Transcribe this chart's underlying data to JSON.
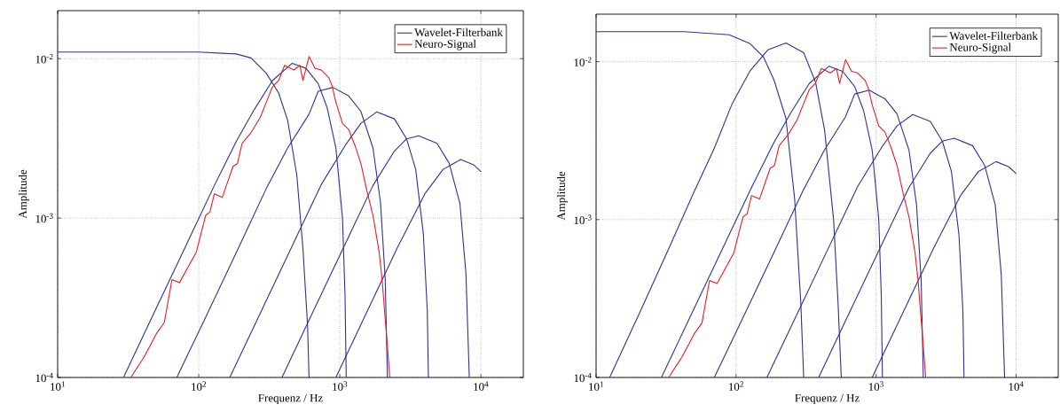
{
  "chart_data": [
    {
      "type": "line",
      "xlabel": "Frequenz / Hz",
      "ylabel": "Amplitude",
      "log": "xy",
      "grid": true,
      "legend": "top right",
      "xlim": [
        10,
        20000
      ],
      "ylim": [
        0.0001,
        0.02
      ],
      "xticks": [
        {
          "value": 10,
          "label": "10$^{1}$"
        },
        {
          "value": 100,
          "label": "10$^{2}$"
        },
        {
          "value": 1000,
          "label": "10$^{3}$"
        },
        {
          "value": 10000,
          "label": "10$^{4}$"
        }
      ],
      "yticks": [
        {
          "value": 0.0001,
          "label": "10$^{-4}$"
        },
        {
          "value": 0.001,
          "label": "10$^{-3}$"
        },
        {
          "value": 0.01,
          "label": "10$^{-2}$"
        }
      ],
      "series": [
        {
          "name": "Wavelet-Filterbank",
          "color": "#2e3192",
          "x": [
            10,
            100,
            184,
            235,
            301,
            368,
            427,
            496,
            548,
            591,
            605
          ],
          "values": [
            0.011,
            0.011,
            0.0107,
            0.0101,
            0.0081,
            0.0061,
            0.0041,
            0.00185,
            0.00064,
            0.00021,
            0.0001
          ]
        },
        {
          "name": "Neuro-Signal",
          "color": "#ed1c24",
          "x": [
            33.0,
            41.3,
            50.4,
            57.0,
            64.6,
            73.1,
            96.1,
            112,
            120,
            129,
            147,
            175,
            188,
            203,
            235,
            273,
            301,
            333,
            368,
            406,
            472,
            521,
            548,
            605,
            668,
            738,
            836,
            879,
            938,
            1045,
            1156,
            1276,
            1409,
            1556,
            1718,
            1900,
            1995,
            2099,
            2203,
            2259
          ],
          "values": [
            0.0001,
            0.000136,
            0.00019,
            0.000221,
            0.000411,
            0.000394,
            0.000612,
            0.00104,
            0.00109,
            0.00142,
            0.00135,
            0.00211,
            0.0022,
            0.00294,
            0.00344,
            0.00428,
            0.00533,
            0.00665,
            0.00728,
            0.00907,
            0.00849,
            0.00907,
            0.00728,
            0.0103,
            0.00869,
            0.00849,
            0.0076,
            0.00681,
            0.00533,
            0.00392,
            0.00359,
            0.00288,
            0.00221,
            0.00148,
            0.00104,
            0.000612,
            0.000411,
            0.000232,
            0.000136,
            0.0001
          ]
        },
        {
          "color": "#2e3192",
          "x": [
            29.3,
            47.9,
            78.7,
            129,
            184,
            247,
            333,
            460,
            576,
            703,
            815,
            938,
            1045,
            1089,
            1110
          ],
          "values": [
            0.0001,
            0.000251,
            0.000634,
            0.0016,
            0.00301,
            0.00478,
            0.00728,
            0.00935,
            0.00869,
            0.00697,
            0.00489,
            0.00275,
            0.001,
            0.00033,
            0.0001
          ]
        },
        {
          "color": "#2e3192",
          "x": [
            69.9,
            112,
            184,
            301,
            427,
            605,
            703,
            892,
            1156,
            1409,
            1718,
            1945,
            2099,
            2174
          ],
          "values": [
            0.0001,
            0.000239,
            0.000604,
            0.00153,
            0.00275,
            0.00448,
            0.00624,
            0.0066,
            0.00583,
            0.00468,
            0.00275,
            0.00124,
            0.000411,
            0.0001
          ]
        },
        {
          "color": "#2e3192",
          "x": [
            166,
            273,
            449,
            738,
            1099,
            1409,
            1824,
            2437,
            2972,
            3451,
            3908,
            4169,
            4246
          ],
          "values": [
            0.0001,
            0.000253,
            0.00064,
            0.00162,
            0.00288,
            0.00392,
            0.00463,
            0.00419,
            0.00314,
            0.00202,
            0.000798,
            0.000264,
            0.0001
          ]
        },
        {
          "color": "#2e3192",
          "x": [
            389,
            636,
            1045,
            1718,
            2437,
            2972,
            3622,
            4886,
            5956,
            7096,
            7834,
            8276
          ],
          "values": [
            0.0001,
            0.000251,
            0.000634,
            0.0016,
            0.00263,
            0.00314,
            0.00328,
            0.00294,
            0.00221,
            0.00124,
            0.00045,
            0.0001
          ]
        },
        {
          "color": "#2e3192",
          "x": [
            938,
            1556,
            2559,
            4009,
            5395,
            7194,
            8872,
            10040
          ],
          "values": [
            0.0001,
            0.000258,
            0.000652,
            0.00142,
            0.00202,
            0.00233,
            0.00216,
            0.00195
          ]
        }
      ]
    },
    {
      "type": "line",
      "xlabel": "Frequenz / Hz",
      "ylabel": "Amplitude",
      "log": "xy",
      "grid": true,
      "legend": "top right",
      "xlim": [
        10,
        20000
      ],
      "ylim": [
        0.0001,
        0.02
      ],
      "xticks": [
        {
          "value": 10,
          "label": "10$^{1}$"
        },
        {
          "value": 100,
          "label": "10$^{2}$"
        },
        {
          "value": 1000,
          "label": "10$^{3}$"
        },
        {
          "value": 10000,
          "label": "10$^{4}$"
        }
      ],
      "yticks": [
        {
          "value": 0.0001,
          "label": "10$^{-4}$"
        },
        {
          "value": 0.001,
          "label": "10$^{-3}$"
        },
        {
          "value": 0.01,
          "label": "10$^{-2}$"
        }
      ],
      "series": [
        {
          "name": "Wavelet-Filterbank",
          "color": "#2e3192",
          "x": [
            10,
            42.8,
            89.3,
            126,
            157,
            186,
            227,
            262,
            290,
            304
          ],
          "values": [
            0.0155,
            0.0155,
            0.0148,
            0.013,
            0.0107,
            0.00771,
            0.00438,
            0.00135,
            0.000294,
            0.0001
          ]
        },
        {
          "name": "Neuro-Signal",
          "color": "#ed1c24",
          "x": [
            33.0,
            41.3,
            50.4,
            57.0,
            64.6,
            73.1,
            96.1,
            112,
            120,
            129,
            147,
            175,
            188,
            203,
            235,
            273,
            301,
            333,
            368,
            406,
            472,
            521,
            548,
            605,
            668,
            738,
            836,
            879,
            938,
            1045,
            1156,
            1276,
            1409,
            1556,
            1718,
            1900,
            1995,
            2099,
            2203,
            2259
          ],
          "values": [
            0.0001,
            0.000136,
            0.00019,
            0.000221,
            0.000411,
            0.000394,
            0.000612,
            0.00104,
            0.00109,
            0.00142,
            0.00135,
            0.00211,
            0.0022,
            0.00294,
            0.00344,
            0.00428,
            0.00533,
            0.00665,
            0.00728,
            0.00907,
            0.00849,
            0.00907,
            0.00728,
            0.0103,
            0.00869,
            0.00849,
            0.0076,
            0.00681,
            0.00533,
            0.00392,
            0.00359,
            0.00288,
            0.00221,
            0.00148,
            0.00104,
            0.000612,
            0.000411,
            0.000232,
            0.000136,
            0.0001
          ]
        },
        {
          "color": "#2e3192",
          "x": [
            12.5,
            20.5,
            33.5,
            49.6,
            69.9,
            93.8,
            126,
            169,
            227,
            304,
            370,
            429,
            497,
            535,
            564
          ],
          "values": [
            0.0001,
            0.000258,
            0.000673,
            0.00147,
            0.00283,
            0.00543,
            0.00877,
            0.0119,
            0.01315,
            0.0114,
            0.00738,
            0.00367,
            0.001,
            0.000294,
            0.0001
          ]
        },
        {
          "color": "#2e3192",
          "x": [
            29.3,
            47.9,
            78.7,
            129,
            184,
            247,
            333,
            460,
            576,
            703,
            815,
            938,
            1045,
            1089,
            1110
          ],
          "values": [
            0.0001,
            0.000251,
            0.000634,
            0.0016,
            0.00301,
            0.00478,
            0.00728,
            0.00935,
            0.00869,
            0.00697,
            0.00489,
            0.00275,
            0.001,
            0.00033,
            0.0001
          ]
        },
        {
          "color": "#2e3192",
          "x": [
            69.9,
            112,
            184,
            301,
            427,
            605,
            703,
            892,
            1156,
            1409,
            1718,
            1945,
            2099,
            2174
          ],
          "values": [
            0.0001,
            0.000239,
            0.000604,
            0.00153,
            0.00275,
            0.00448,
            0.00624,
            0.0066,
            0.00583,
            0.00468,
            0.00275,
            0.00124,
            0.000411,
            0.0001
          ]
        },
        {
          "color": "#2e3192",
          "x": [
            166,
            273,
            449,
            738,
            1099,
            1409,
            1824,
            2437,
            2972,
            3451,
            3908,
            4169,
            4246
          ],
          "values": [
            0.0001,
            0.000253,
            0.00064,
            0.00162,
            0.00288,
            0.00392,
            0.00463,
            0.00419,
            0.00314,
            0.00202,
            0.000798,
            0.000264,
            0.0001
          ]
        },
        {
          "color": "#2e3192",
          "x": [
            389,
            636,
            1045,
            1718,
            2437,
            2972,
            3622,
            4886,
            5956,
            7096,
            7834,
            8276
          ],
          "values": [
            0.0001,
            0.000251,
            0.000634,
            0.0016,
            0.00263,
            0.00314,
            0.00328,
            0.00294,
            0.00221,
            0.00124,
            0.00045,
            0.0001
          ]
        },
        {
          "color": "#2e3192",
          "x": [
            938,
            1556,
            2559,
            4009,
            5395,
            7194,
            8872,
            10040
          ],
          "values": [
            0.0001,
            0.000258,
            0.000652,
            0.00142,
            0.00202,
            0.00233,
            0.00216,
            0.00195
          ]
        }
      ]
    }
  ]
}
